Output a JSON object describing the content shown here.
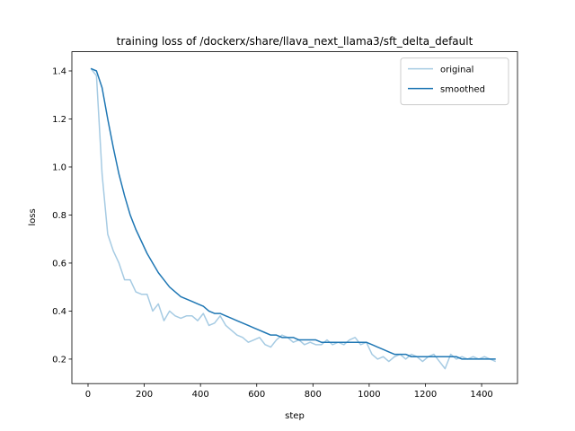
{
  "chart_data": {
    "type": "line",
    "title": "training loss of /dockerx/share/llava_next_llama3/sft_delta_default",
    "xlabel": "step",
    "ylabel": "loss",
    "x": [
      10,
      30,
      50,
      70,
      90,
      110,
      130,
      150,
      170,
      190,
      210,
      230,
      250,
      270,
      290,
      310,
      330,
      350,
      370,
      390,
      410,
      430,
      450,
      470,
      490,
      510,
      530,
      550,
      570,
      590,
      610,
      630,
      650,
      670,
      690,
      710,
      730,
      750,
      770,
      790,
      810,
      830,
      850,
      870,
      890,
      910,
      930,
      950,
      970,
      990,
      1010,
      1030,
      1050,
      1070,
      1090,
      1110,
      1130,
      1150,
      1170,
      1190,
      1210,
      1230,
      1250,
      1270,
      1290,
      1310,
      1330,
      1350,
      1370,
      1390,
      1410,
      1430,
      1450
    ],
    "series": [
      {
        "name": "original",
        "color": "#a6cbe3",
        "values": [
          1.41,
          1.38,
          0.97,
          0.72,
          0.65,
          0.6,
          0.53,
          0.53,
          0.48,
          0.47,
          0.47,
          0.4,
          0.43,
          0.36,
          0.4,
          0.38,
          0.37,
          0.38,
          0.38,
          0.36,
          0.39,
          0.34,
          0.35,
          0.38,
          0.34,
          0.32,
          0.3,
          0.29,
          0.27,
          0.28,
          0.29,
          0.26,
          0.25,
          0.28,
          0.3,
          0.29,
          0.27,
          0.28,
          0.26,
          0.27,
          0.26,
          0.26,
          0.28,
          0.26,
          0.27,
          0.26,
          0.28,
          0.29,
          0.26,
          0.27,
          0.22,
          0.2,
          0.21,
          0.19,
          0.21,
          0.22,
          0.2,
          0.22,
          0.21,
          0.19,
          0.21,
          0.22,
          0.19,
          0.16,
          0.22,
          0.2,
          0.21,
          0.2,
          0.21,
          0.2,
          0.21,
          0.2,
          0.19
        ]
      },
      {
        "name": "smoothed",
        "color": "#1f77b4",
        "values": [
          1.41,
          1.4,
          1.33,
          1.2,
          1.08,
          0.97,
          0.88,
          0.8,
          0.74,
          0.69,
          0.64,
          0.6,
          0.56,
          0.53,
          0.5,
          0.48,
          0.46,
          0.45,
          0.44,
          0.43,
          0.42,
          0.4,
          0.39,
          0.39,
          0.38,
          0.37,
          0.36,
          0.35,
          0.34,
          0.33,
          0.32,
          0.31,
          0.3,
          0.3,
          0.29,
          0.29,
          0.29,
          0.28,
          0.28,
          0.28,
          0.28,
          0.27,
          0.27,
          0.27,
          0.27,
          0.27,
          0.27,
          0.27,
          0.27,
          0.27,
          0.26,
          0.25,
          0.24,
          0.23,
          0.22,
          0.22,
          0.22,
          0.21,
          0.21,
          0.21,
          0.21,
          0.21,
          0.21,
          0.21,
          0.21,
          0.21,
          0.2,
          0.2,
          0.2,
          0.2,
          0.2,
          0.2,
          0.2
        ]
      }
    ],
    "xlim": [
      -57.5,
      1527.6
    ],
    "xticks": [
      0,
      200,
      400,
      600,
      800,
      1000,
      1200,
      1400
    ],
    "ylim": [
      0.098,
      1.48
    ],
    "yticks": [
      0.2,
      0.4,
      0.6,
      0.8,
      {
        "value": 1,
        "label": "1.0"
      },
      1.2,
      1.4
    ],
    "legend": "upper right"
  }
}
